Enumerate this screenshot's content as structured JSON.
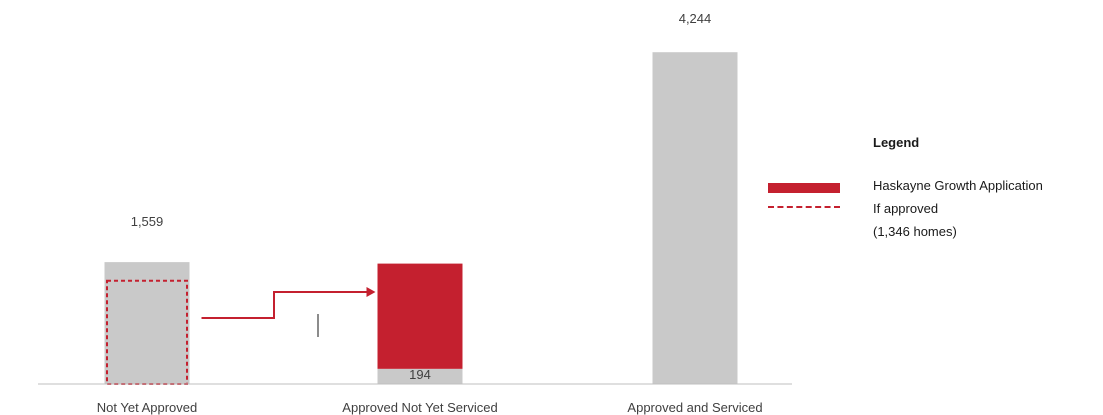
{
  "chart_data": {
    "type": "bar",
    "categories": [
      "Not Yet Approved",
      "Approved Not Yet Serviced",
      "Approved and Serviced"
    ],
    "series": [
      {
        "values": [
          1559,
          194,
          4244
        ]
      }
    ],
    "value_labels": [
      "1,559",
      "194",
      "4,244"
    ],
    "highlight": {
      "name": "Haskayne Growth Application",
      "homes": 1346,
      "moves_from": "Not Yet Approved",
      "moves_to": "Approved Not Yet Serviced"
    },
    "ylim": [
      0,
      4400
    ],
    "grid": false,
    "legend_position": "right",
    "colors": {
      "base": "#c9c9c9",
      "highlight": "#c4202f",
      "axis": "#bfbfbf",
      "text": "#404040"
    }
  },
  "legend": {
    "title": "Legend",
    "items": [
      {
        "label": "Haskayne Growth Application",
        "style": "solid"
      },
      {
        "label": "If approved",
        "style": "dashed"
      }
    ],
    "note": "(1,346 homes)"
  }
}
